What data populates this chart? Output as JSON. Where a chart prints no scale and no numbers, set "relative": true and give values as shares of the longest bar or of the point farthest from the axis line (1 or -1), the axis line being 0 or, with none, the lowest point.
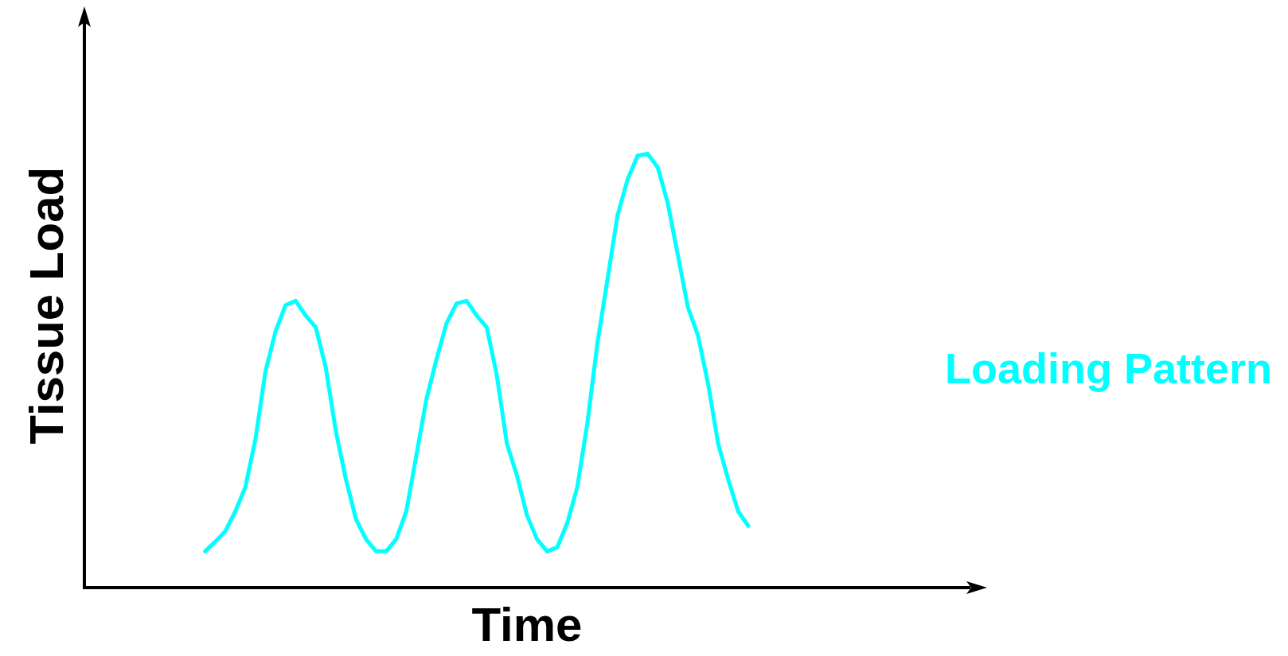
{
  "chart_data": {
    "type": "line",
    "xlabel": "Time",
    "ylabel": "Tissue Load",
    "relative": true,
    "legend": "right",
    "grid": false,
    "marker": "none",
    "line_style": "solid",
    "categories": [
      null,
      null,
      null,
      null,
      null,
      null,
      null,
      null,
      null,
      null,
      null,
      null,
      null,
      null,
      null,
      null,
      null,
      null,
      null,
      null,
      null,
      null,
      null,
      null,
      null,
      null,
      null,
      null,
      null,
      null,
      null,
      null,
      null,
      null,
      null,
      null,
      null,
      null,
      null,
      null,
      null,
      null,
      null,
      null,
      null,
      null,
      null,
      null,
      null,
      null,
      null,
      null,
      null,
      null,
      null,
      null,
      null,
      null,
      null,
      null,
      null,
      null,
      null,
      null,
      null,
      null,
      null,
      null,
      null,
      null,
      null,
      null,
      null,
      null,
      null,
      null,
      null,
      null,
      null,
      null,
      null,
      null,
      null,
      null,
      null,
      null,
      null,
      null,
      null
    ],
    "series": [
      {
        "name": "Loading Pattern",
        "color": "#00ffff",
        "values": [
          null,
          null,
          null,
          null,
          null,
          null,
          null,
          null,
          null,
          null,
          null,
          null,
          0.083,
          0.105,
          0.129,
          0.175,
          0.231,
          0.341,
          0.498,
          0.59,
          0.651,
          0.661,
          0.627,
          0.6,
          0.507,
          0.36,
          0.249,
          0.157,
          0.111,
          0.083,
          0.083,
          0.111,
          0.175,
          0.304,
          0.434,
          0.526,
          0.609,
          0.655,
          0.661,
          0.627,
          0.6,
          0.489,
          0.332,
          0.258,
          0.166,
          0.111,
          0.083,
          0.092,
          0.148,
          0.231,
          0.378,
          0.563,
          0.71,
          0.858,
          0.941,
          0.996,
          1,
          0.969,
          0.886,
          0.766,
          0.646,
          0.581,
          0.47,
          0.332,
          0.249,
          0.175,
          0.142,
          null,
          null,
          null,
          null,
          null,
          null,
          null,
          null,
          null,
          null,
          null,
          null,
          null,
          null,
          null,
          null,
          null,
          null,
          null,
          null,
          null,
          null
        ]
      }
    ]
  }
}
